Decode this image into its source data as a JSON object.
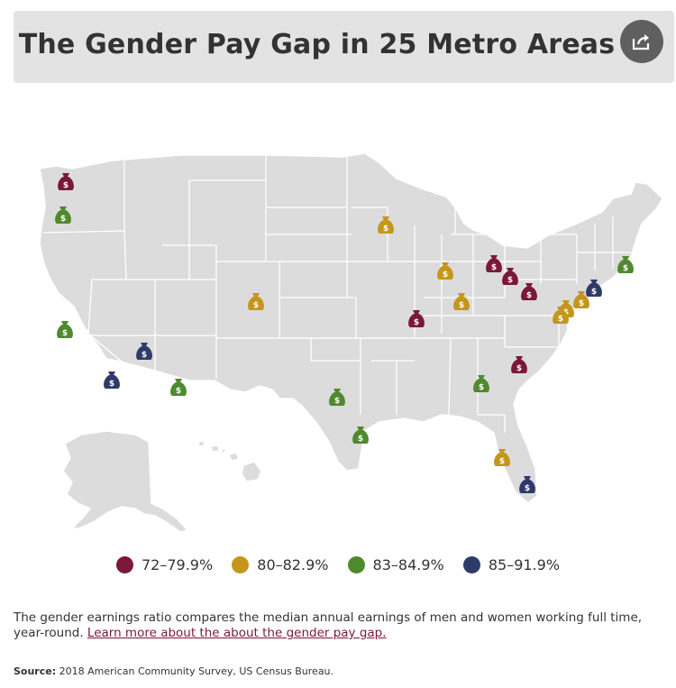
{
  "title": "The Gender Pay Gap in 25 Metro Areas",
  "share_icon": "share-icon",
  "colors": {
    "map_fill": "#dcdcdc",
    "state_border": "#ffffff",
    "cat1": "#7b1838",
    "cat2": "#c4961a",
    "cat3": "#4f8a2e",
    "cat4": "#2e3b69"
  },
  "legend": [
    {
      "label": "72–79.9%",
      "color": "#7b1838"
    },
    {
      "label": "80–82.9%",
      "color": "#c4961a"
    },
    {
      "label": "83–84.9%",
      "color": "#4f8a2e"
    },
    {
      "label": "85–91.9%",
      "color": "#2e3b69"
    }
  ],
  "markers": [
    {
      "region": "Seattle",
      "category": 1
    },
    {
      "region": "Portland",
      "category": 3
    },
    {
      "region": "San Francisco",
      "category": 3
    },
    {
      "region": "Riverside",
      "category": 4
    },
    {
      "region": "Los Angeles",
      "category": 4
    },
    {
      "region": "Phoenix",
      "category": 3
    },
    {
      "region": "Denver",
      "category": 2
    },
    {
      "region": "Minneapolis",
      "category": 2
    },
    {
      "region": "Dallas",
      "category": 3
    },
    {
      "region": "Houston",
      "category": 3
    },
    {
      "region": "St. Louis",
      "category": 1
    },
    {
      "region": "Chicago",
      "category": 2
    },
    {
      "region": "Indianapolis",
      "category": 2
    },
    {
      "region": "Detroit",
      "category": 1
    },
    {
      "region": "Cleveland",
      "category": 1
    },
    {
      "region": "Pittsburgh",
      "category": 1
    },
    {
      "region": "Philadelphia",
      "category": 2
    },
    {
      "region": "Baltimore",
      "category": 2
    },
    {
      "region": "Washington",
      "category": 2
    },
    {
      "region": "New York",
      "category": 4
    },
    {
      "region": "Boston",
      "category": 3
    },
    {
      "region": "Charlotte",
      "category": 1
    },
    {
      "region": "Atlanta",
      "category": 3
    },
    {
      "region": "Tampa",
      "category": 2
    },
    {
      "region": "Miami",
      "category": 4
    }
  ],
  "note": {
    "text": "The gender earnings ratio compares the median annual earnings of men and women working full time, year-round. ",
    "link": "Learn more about the about the gender pay gap."
  },
  "source": {
    "label": "Source:",
    "text": " 2018 American Community Survey, US Census Bureau."
  }
}
